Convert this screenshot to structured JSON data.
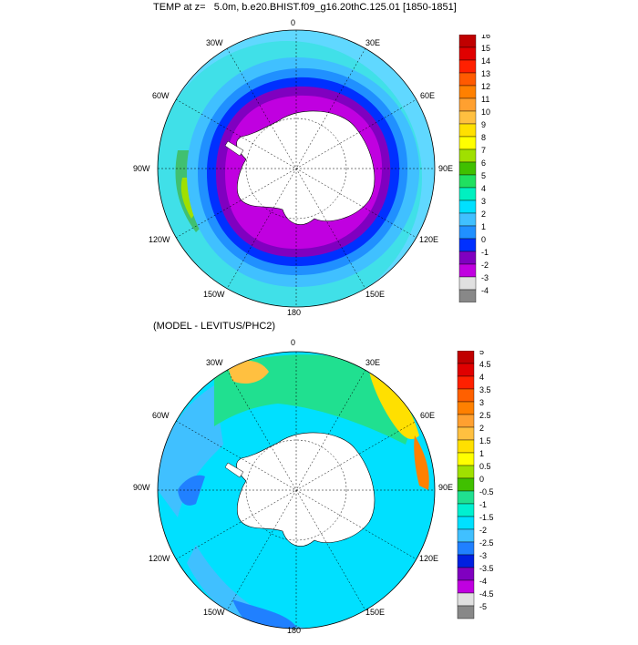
{
  "panel1": {
    "title": "TEMP at z=   5.0m, b.e20.BHIST.f09_g16.20thC.125.01 [1850-1851]",
    "lon_labels": {
      "n": "0",
      "nne": "30E",
      "ene": "60E",
      "e": "90E",
      "ese": "120E",
      "sse": "150E",
      "s": "180",
      "ssw": "150W",
      "wsw": "120W",
      "w": "90W",
      "wnw": "60W",
      "nnw": "30W"
    },
    "colorbar": {
      "labels": [
        "16",
        "15",
        "14",
        "13",
        "12",
        "11",
        "10",
        "9",
        "8",
        "7",
        "6",
        "5",
        "4",
        "3",
        "2",
        "1",
        "0",
        "-1",
        "-2",
        "-3",
        "-4"
      ],
      "colors": [
        "#c00000",
        "#e00000",
        "#ff2000",
        "#ff5a00",
        "#ff8000",
        "#ffa030",
        "#ffc040",
        "#ffe000",
        "#ffff00",
        "#a0e000",
        "#40c000",
        "#20e060",
        "#00f0c0",
        "#00e0ff",
        "#40c0ff",
        "#2090ff",
        "#0030ff",
        "#8000c0",
        "#c000e0",
        "#e0e0e0",
        "#888888"
      ]
    }
  },
  "panel2": {
    "title": "(MODEL - LEVITUS/PHC2)",
    "lon_labels": {
      "n": "0",
      "nne": "30E",
      "ene": "60E",
      "e": "90E",
      "ese": "120E",
      "sse": "150E",
      "s": "180",
      "ssw": "150W",
      "wsw": "120W",
      "w": "90W",
      "wnw": "60W",
      "nnw": "30W"
    },
    "colorbar": {
      "labels": [
        "5",
        "4.5",
        "4",
        "3.5",
        "3",
        "2.5",
        "2",
        "1.5",
        "1",
        "0.5",
        "0",
        "-0.5",
        "-1",
        "-1.5",
        "-2",
        "-2.5",
        "-3",
        "-3.5",
        "-4",
        "-4.5",
        "-5"
      ],
      "colors": [
        "#c00000",
        "#e00000",
        "#ff2000",
        "#ff6000",
        "#ff8000",
        "#ffa030",
        "#ffc040",
        "#ffe000",
        "#ffff00",
        "#a0e000",
        "#40c000",
        "#20e090",
        "#00f0d0",
        "#00e0ff",
        "#40c0ff",
        "#2080ff",
        "#0020e0",
        "#8000c0",
        "#c000e0",
        "#e0e0e0",
        "#888888"
      ]
    }
  }
}
